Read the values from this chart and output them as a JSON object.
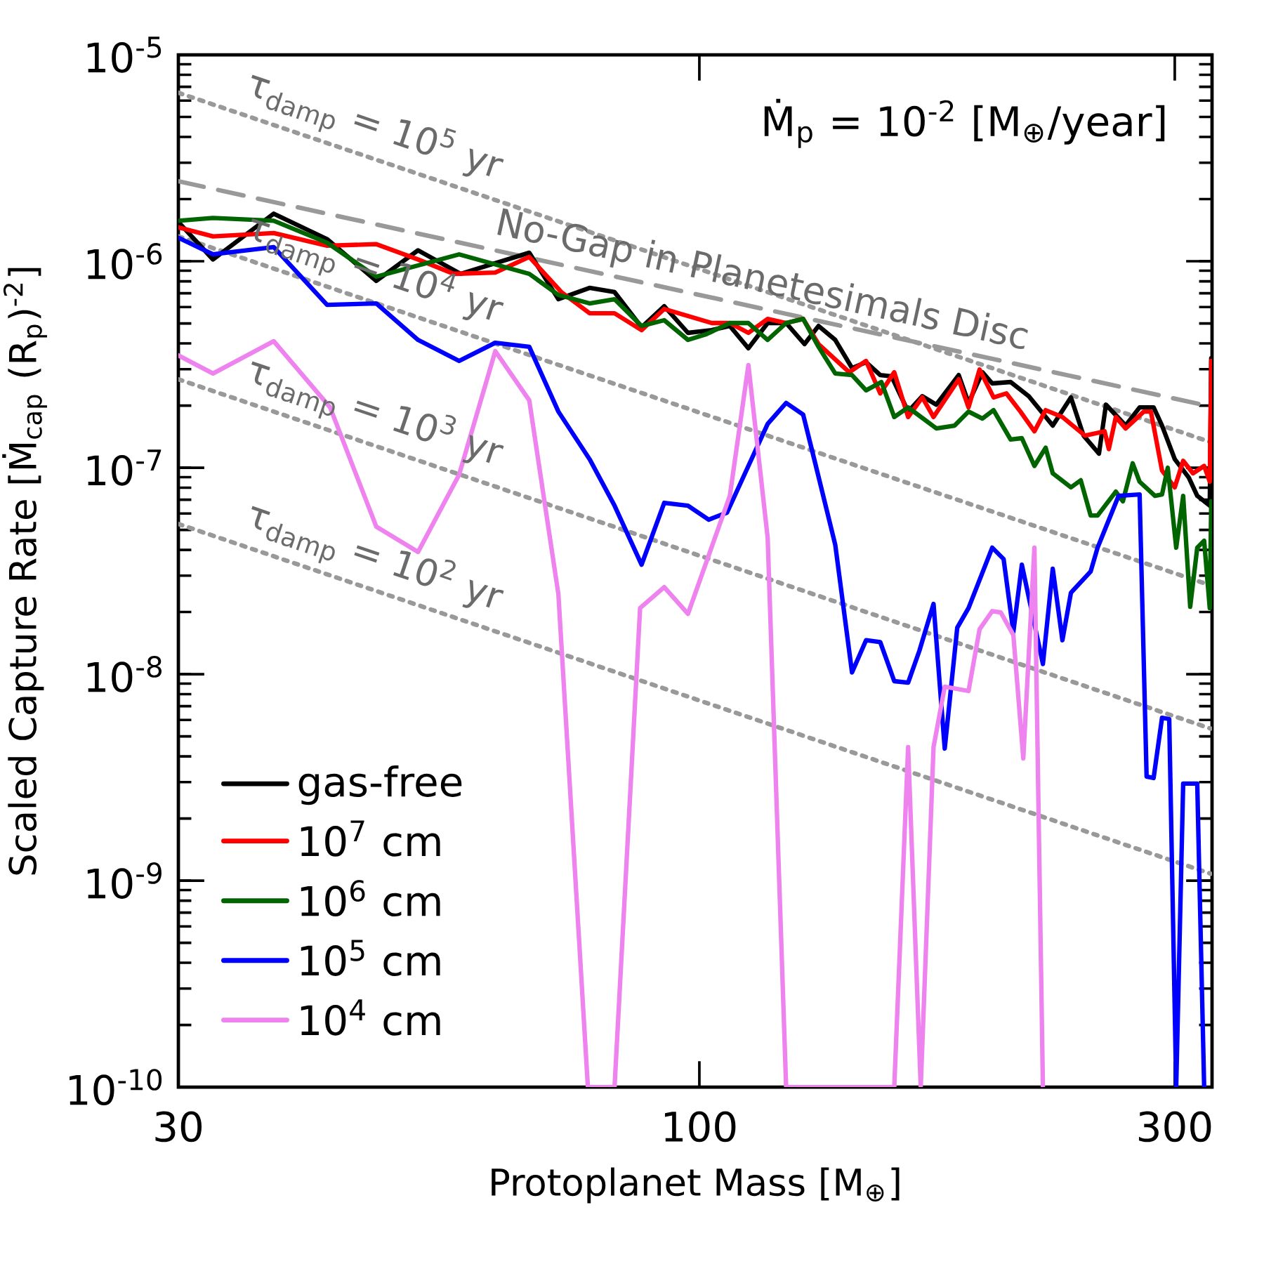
{
  "chart_data": {
    "type": "line",
    "log": "xy",
    "legend": "bottom left",
    "xlabel": "Protoplanet Mass [M$_{⊕}$]",
    "ylabel": "Scaled Capture Rate [Ṁ$_{cap}$ (R$_{p}$)$^{-2}$]",
    "xlim": [
      30,
      327
    ],
    "ylim": [
      1e-10,
      1e-05
    ],
    "xticks": [
      30,
      100,
      300
    ],
    "yticks": [
      {
        "value": 1e-10,
        "label": "10$^{-10}$"
      },
      {
        "value": 1e-09,
        "label": "10$^{-9}$"
      },
      {
        "value": 1e-08,
        "label": "10$^{-8}$"
      },
      {
        "value": 1e-07,
        "label": "10$^{-7}$"
      },
      {
        "value": 1e-06,
        "label": "10$^{-6}$"
      },
      {
        "value": 1e-05,
        "label": "10$^{-5}$"
      }
    ],
    "annotations": [
      "Ṁ$_{p}$ = 10$^{-2}$ [M$_{⊕}$/year]",
      "τ$_{damp}$ = 10$^{5}$ yr",
      "τ$_{damp}$ = 10$^{4}$ yr",
      "τ$_{damp}$ = 10$^{3}$ yr",
      "τ$_{damp}$ = 10$^{2}$ yr",
      "No-Gap in Planetesimals Disc"
    ],
    "series": [
      {
        "line_style": "dotted",
        "color": "#999999",
        "x": [
          30,
          326
        ],
        "values": [
          6.55e-06,
          1.33e-07
        ]
      },
      {
        "line_style": "dotted",
        "color": "#999999",
        "x": [
          30,
          326
        ],
        "values": [
          1.32e-06,
          2.69e-08
        ]
      },
      {
        "line_style": "dotted",
        "color": "#999999",
        "x": [
          30,
          326
        ],
        "values": [
          2.68e-07,
          5.45e-09
        ]
      },
      {
        "line_style": "dotted",
        "color": "#999999",
        "x": [
          30,
          326
        ],
        "values": [
          5.34e-08,
          1.08e-09
        ]
      },
      {
        "line_style": "dashed",
        "color": "#999999",
        "x": [
          30,
          326
        ],
        "values": [
          2.44e-06,
          1.98e-07
        ]
      },
      {
        "line_style": "solid",
        "name": "gas-free",
        "color": "#000000",
        "x": [
          30.0,
          32.5,
          37.4,
          42.3,
          47.4,
          52.2,
          57.6,
          67.5,
          72.2,
          77.6,
          82.2,
          87.5,
          92.2,
          97.4,
          102.9,
          107.3,
          112.0,
          117.1,
          122.2,
          127.5,
          131.7,
          136.9,
          142.3,
          147.0,
          151.9,
          155.9,
          162.0,
          167.4,
          172.9,
          182.1,
          186.3,
          192.4,
          196.8,
          205.3,
          214.1,
          226.3,
          236.0,
          243.0,
          251.8,
          255.9,
          267.8,
          276.6,
          285.7,
          291.3,
          300,
          309.9,
          316.0,
          325.3,
          326.4
        ],
        "values": [
          1.55e-06,
          1.02e-06,
          1.7e-06,
          1.28e-06,
          8.03e-07,
          1.13e-06,
          8.69e-07,
          1.1e-06,
          6.55e-07,
          7.43e-07,
          7.09e-07,
          4.79e-07,
          6.06e-07,
          4.5e-07,
          4.64e-07,
          4.86e-07,
          3.79e-07,
          5.02e-07,
          5.02e-07,
          3.97e-07,
          4.86e-07,
          4.16e-07,
          3.04e-07,
          3.24e-07,
          2.81e-07,
          2.77e-07,
          1.87e-07,
          2.22e-07,
          2.02e-07,
          2.81e-07,
          2.06e-07,
          2.9e-07,
          2.56e-07,
          2.6e-07,
          2.22e-07,
          1.6e-07,
          2.19e-07,
          1.43e-07,
          1.17e-07,
          2.02e-07,
          1.6e-07,
          1.96e-07,
          1.96e-07,
          1.6e-07,
          1.1e-07,
          8.96e-08,
          7.31e-08,
          6.55e-08,
          3.39e-07
        ]
      },
      {
        "line_style": "solid",
        "name": "10$^{7}$ cm",
        "color": "#ff0000",
        "x": [
          30.0,
          32.5,
          37.4,
          42.3,
          47.4,
          52.2,
          56.7,
          62.4,
          67.5,
          72.7,
          77.6,
          82.2,
          87.5,
          92.2,
          97.4,
          102.9,
          107.3,
          112.0,
          117.1,
          122.2,
          127.1,
          131.7,
          141.4,
          147.0,
          151.9,
          156.9,
          162.0,
          167.4,
          171.8,
          182.1,
          186.3,
          191.1,
          197.4,
          203.3,
          210.0,
          216.9,
          222.6,
          231.4,
          243.8,
          255.1,
          257.6,
          261.8,
          267.8,
          279.3,
          283.9,
          291.3,
          300,
          305.9,
          312.9,
          321.1,
          325.3,
          326.4
        ],
        "values": [
          1.46e-06,
          1.32e-06,
          1.37e-06,
          1.19e-06,
          1.21e-06,
          1.02e-06,
          8.69e-07,
          8.82e-07,
          1.05e-06,
          7.09e-07,
          5.6e-07,
          5.6e-07,
          4.64e-07,
          5.87e-07,
          5.43e-07,
          5.02e-07,
          5.02e-07,
          4.5e-07,
          5.26e-07,
          5.02e-07,
          5.26e-07,
          3.97e-07,
          2.9e-07,
          3.29e-07,
          2.29e-07,
          2.9e-07,
          1.76e-07,
          2.19e-07,
          1.76e-07,
          2.68e-07,
          1.96e-07,
          2.99e-07,
          2.19e-07,
          2.29e-07,
          1.87e-07,
          1.5e-07,
          1.9e-07,
          1.76e-07,
          1.43e-07,
          1.5e-07,
          1.23e-07,
          1.76e-07,
          1.55e-07,
          1.87e-07,
          1.87e-07,
          9.69e-08,
          8.03e-08,
          1.08e-07,
          9.39e-08,
          1.02e-07,
          8.55e-08,
          3.29e-07
        ]
      },
      {
        "line_style": "solid",
        "name": "10$^{6}$ cm",
        "color": "#006400",
        "x": [
          30.0,
          32.5,
          37.4,
          42.3,
          47.4,
          57.4,
          67.5,
          72.2,
          77.6,
          82.2,
          87.5,
          92.2,
          97.4,
          101.6,
          107.3,
          112.0,
          117.1,
          122.2,
          127.1,
          131.7,
          136.9,
          142.3,
          147.0,
          152.3,
          156.9,
          162.0,
          172.9,
          180.4,
          186.3,
          192.4,
          197.4,
          205.3,
          210.7,
          216.9,
          222.6,
          226.3,
          236.0,
          241.4,
          247.0,
          251.0,
          261.8,
          266.1,
          272.2,
          276.6,
          286.6,
          291.3,
          295.2,
          301.0,
          305.9,
          310.9,
          316.0,
          321.1,
          325.3,
          326.4
        ],
        "values": [
          1.57e-06,
          1.62e-06,
          1.57e-06,
          1.23e-06,
          8.42e-07,
          1.08e-06,
          8.69e-07,
          6.87e-07,
          6.25e-07,
          6.55e-07,
          4.86e-07,
          5.18e-07,
          4.16e-07,
          4.43e-07,
          5.02e-07,
          5.02e-07,
          4.16e-07,
          5.02e-07,
          5.26e-07,
          3.85e-07,
          2.86e-07,
          2.81e-07,
          2.37e-07,
          2.6e-07,
          1.76e-07,
          1.96e-07,
          1.55e-07,
          1.6e-07,
          1.87e-07,
          1.73e-07,
          1.9e-07,
          1.37e-07,
          1.39e-07,
          1.02e-07,
          1.25e-07,
          9.39e-08,
          8.03e-08,
          8.69e-08,
          5.87e-08,
          5.87e-08,
          7.66e-08,
          6.87e-08,
          1.05e-07,
          8.55e-08,
          7.31e-08,
          7.42e-08,
          1e-07,
          4.1e-08,
          7.31e-08,
          2.12e-08,
          4.1e-08,
          4.43e-08,
          2.09e-08,
          6.87e-08
        ]
      },
      {
        "line_style": "solid",
        "name": "10$^{5}$ cm",
        "color": "#0000ff",
        "x": [
          30.0,
          32.5,
          37.4,
          42.3,
          47.4,
          52.2,
          57.4,
          62.4,
          67.5,
          72.2,
          77.6,
          82.2,
          87.5,
          92.2,
          97.4,
          102.2,
          106.6,
          112.0,
          117.1,
          122.2,
          127.1,
          130.4,
          136.9,
          142.3,
          147.0,
          151.9,
          156.9,
          162.0,
          166.3,
          171.8,
          176.3,
          181.5,
          186.3,
          196.8,
          202.0,
          206.6,
          210.7,
          221.2,
          226.3,
          231.4,
          236.0,
          247.0,
          251.0,
          263.5,
          276.6,
          281.1,
          285.7,
          291.3,
          296.2,
          301.0,
          305.9,
          316.0,
          321.1
        ],
        "values": [
          1.3e-06,
          1.08e-06,
          1.17e-06,
          6.15e-07,
          6.25e-07,
          4.16e-07,
          3.29e-07,
          4.03e-07,
          3.85e-07,
          1.87e-07,
          1.1e-07,
          6.55e-08,
          3.39e-08,
          6.76e-08,
          6.55e-08,
          5.6e-08,
          6.06e-08,
          1.02e-07,
          1.63e-07,
          2.06e-07,
          1.81e-07,
          1.1e-07,
          4.23e-08,
          1.02e-08,
          1.46e-08,
          1.43e-08,
          9.25e-09,
          9.1e-09,
          1.3e-08,
          2.19e-08,
          4.36e-09,
          1.68e-08,
          2.09e-08,
          4.1e-08,
          3.61e-08,
          1.6e-08,
          3.39e-08,
          1.12e-08,
          3.24e-08,
          1.46e-08,
          2.48e-08,
          3.14e-08,
          4.1e-08,
          7.31e-08,
          7.42e-08,
          3.19e-09,
          3.14e-09,
          6.15e-09,
          6.06e-09,
          1e-10,
          2.95e-09,
          2.95e-09,
          1e-10
        ]
      },
      {
        "line_style": "solid",
        "name": "10$^{4}$ cm",
        "color": "#ee82ee",
        "x": [
          30.0,
          32.5,
          37.4,
          42.6,
          47.4,
          52.2,
          57.4,
          62.4,
          67.5,
          72.2,
          77.3,
          82.2,
          87.2,
          92.2,
          97.4,
          107.3,
          112.0,
          117.1,
          122.2,
          156.9,
          162.0,
          166.8,
          171.8,
          176.3,
          186.3,
          191.1,
          196.8,
          200.7,
          206.6,
          211.4,
          216.9,
          221.2
        ],
        "values": [
          3.5e-07,
          2.86e-07,
          4.1e-07,
          1.96e-07,
          5.18e-08,
          3.91e-08,
          9.25e-08,
          3.67e-07,
          2.12e-07,
          2.44e-08,
          1e-10,
          1e-10,
          2.09e-08,
          2.64e-08,
          1.96e-08,
          7.31e-08,
          3.14e-07,
          4.57e-08,
          1e-10,
          1e-10,
          4.43e-09,
          1e-10,
          4.43e-09,
          8.69e-09,
          8.29e-09,
          1.65e-08,
          2.02e-08,
          1.99e-08,
          1.55e-08,
          3.91e-09,
          4.1e-08,
          1e-10
        ]
      }
    ]
  }
}
